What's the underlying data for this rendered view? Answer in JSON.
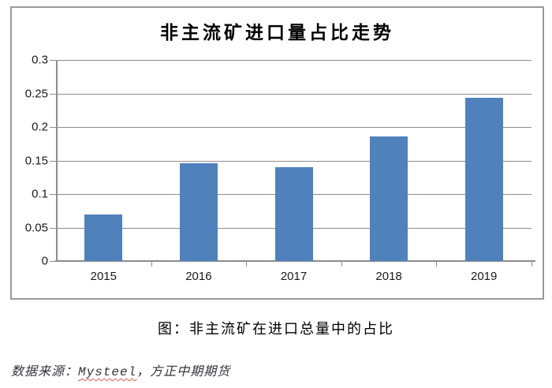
{
  "chart": {
    "title": "非主流矿进口量占比走势"
  },
  "chart_data": {
    "type": "bar",
    "categories": [
      "2015",
      "2016",
      "2017",
      "2018",
      "2019"
    ],
    "values": [
      0.069,
      0.146,
      0.14,
      0.186,
      0.243
    ],
    "title": "非主流矿进口量占比走势",
    "xlabel": "",
    "ylabel": "",
    "ylim": [
      0,
      0.3
    ],
    "ytick_step": 0.05,
    "ytick_labels": [
      "0",
      "0.05",
      "0.1",
      "0.15",
      "0.2",
      "0.25",
      "0.3"
    ],
    "grid": true,
    "legend": "none",
    "bar_color": "#4F81BD"
  },
  "caption": "图：非主流矿在进口总量中的占比",
  "source": {
    "prefix": "数据来源：",
    "vendor": "Mysteel",
    "separator": "，",
    "publisher": "方正中期期货"
  },
  "colors": {
    "bar": "#4F81BD",
    "gridline": "#8c8c8c",
    "frame_border": "#9a9a9a",
    "text": "#000000",
    "source_text": "#33333d",
    "spellcheck_underline": "#e05a4e"
  }
}
